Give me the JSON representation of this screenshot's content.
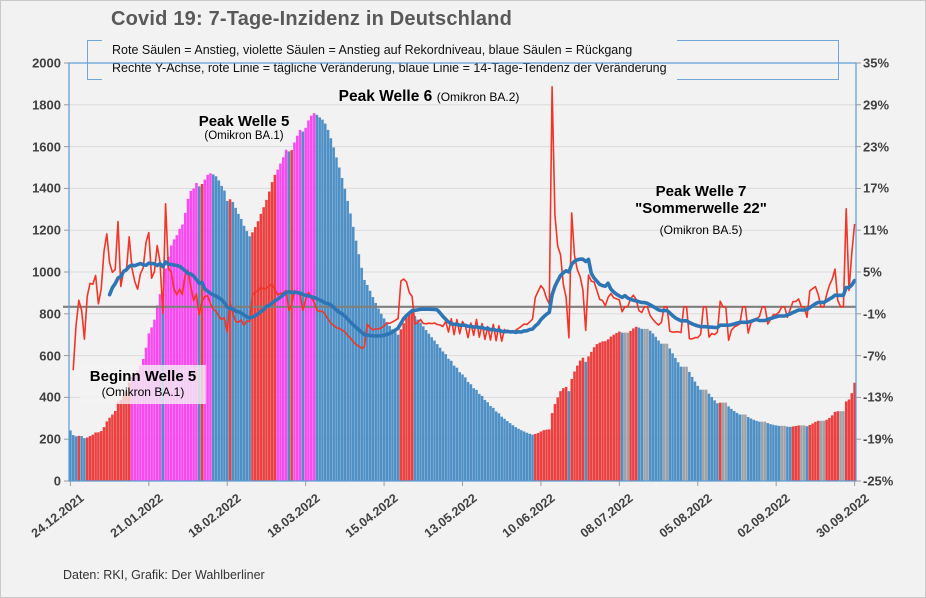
{
  "title": "Covid 19: 7-Tage-Inzidenz in Deutschland",
  "legend": {
    "line1": "Rote Säulen = Anstieg, violette Säulen = Anstieg auf Rekordniveau, blaue Säulen = Rückgang",
    "line2": "Rechte Y-Achse, rote Linie = tägliche Veränderung, blaue Linie = 14-Tage-Tendenz der Veränderung"
  },
  "footer": "Daten: RKI, Grafik: Der Wahlberliner",
  "annotations": {
    "beginn_w5_title": "Beginn Welle 5",
    "beginn_w5_sub": "(Omikron BA.1)",
    "peak_w5_title": "Peak Welle 5",
    "peak_w5_sub": "(Omikron BA.1)",
    "peak_w6_title": "Peak Welle 6",
    "peak_w6_sub": "(Omikron BA.2)",
    "peak_w7_line1": "Peak Welle 7",
    "peak_w7_line2": "\"Sommerwelle 22\"",
    "peak_w7_sub": "(Omikron BA.5)"
  },
  "colors": {
    "bar_rise": "#EA4040",
    "bar_record": "#F74BF0",
    "bar_decline": "#4E90C6",
    "bar_unchanged": "#9EA3A8",
    "line_daily": "#F23527",
    "line_trend": "#2E75B6",
    "zero_line": "#7F7F7F",
    "grid": "#DBDBDB",
    "plot_border": "#5B9BD5",
    "axis_text": "#404040",
    "title_text": "#595959"
  },
  "chart_data": {
    "type": "bar",
    "title": "Covid 19: 7-Tage-Inzidenz in Deutschland",
    "start_date": "24.12.2021",
    "end_date": "30.09.2022",
    "x_tick_labels": [
      "24.12.2021",
      "21.01.2022",
      "18.02.2022",
      "18.03.2022",
      "15.04.2022",
      "13.05.2022",
      "10.06.2022",
      "08.07.2022",
      "05.08.2022",
      "02.09.2022",
      "30.09.2022"
    ],
    "x_tick_day_interval": 28,
    "left_axis": {
      "min": 0,
      "max": 2000,
      "tick_labels": [
        "2000",
        "1800",
        "1600",
        "1400",
        "1200",
        "1000",
        "800",
        "600",
        "400",
        "200",
        "0"
      ]
    },
    "right_axis": {
      "min": -25,
      "max": 35,
      "unit": "%",
      "tick_labels": [
        "35%",
        "29%",
        "23%",
        "17%",
        "11%",
        "5%",
        "-1%",
        "-7%",
        "-13%",
        "-19%",
        "-25%"
      ]
    },
    "reference_line_right_axis_pct": 0,
    "previous_record_incidence": 485,
    "bar_color_rule": "rise=red, rise-to-new-record=violet, decline=blue, unchanged=gray",
    "red_line_def": "daily percent change of the bar values (right axis)",
    "blue_line_def": "trailing 14-day mean of the daily percent change (right axis)",
    "daily_incidence": [
      242,
      220,
      214,
      216,
      215,
      205,
      208,
      215,
      222,
      232,
      233,
      239,
      258,
      285,
      303,
      318,
      335,
      376,
      387,
      407,
      428,
      471,
      497,
      515,
      528,
      553,
      584,
      638,
      706,
      735,
      772,
      840,
      894,
      886,
      1017,
      1073,
      1127,
      1156,
      1176,
      1206,
      1227,
      1283,
      1350,
      1388,
      1400,
      1426,
      1410,
      1421,
      1442,
      1465,
      1472,
      1467,
      1458,
      1438,
      1412,
      1390,
      1340,
      1348,
      1335,
      1307,
      1278,
      1254,
      1221,
      1196,
      1171,
      1190,
      1215,
      1243,
      1278,
      1310,
      1345,
      1385,
      1430,
      1465,
      1490,
      1519,
      1549,
      1585,
      1577,
      1583,
      1620,
      1652,
      1680,
      1672,
      1690,
      1725,
      1748,
      1760,
      1752,
      1740,
      1729,
      1710,
      1680,
      1640,
      1596,
      1548,
      1500,
      1450,
      1398,
      1340,
      1280,
      1216,
      1150,
      1085,
      1020,
      962,
      938,
      910,
      880,
      852,
      825,
      800,
      778,
      760,
      742,
      726,
      712,
      700,
      726,
      755,
      782,
      798,
      810,
      790,
      772,
      758,
      740,
      722,
      705,
      688,
      672,
      655,
      638,
      620,
      607,
      585,
      575,
      552,
      542,
      521,
      510,
      496,
      474,
      463,
      444,
      436,
      417,
      407,
      388,
      377,
      359,
      350,
      333,
      324,
      308,
      298,
      287,
      277,
      267,
      258,
      250,
      243,
      237,
      231,
      226,
      222,
      225,
      230,
      237,
      243,
      246,
      247,
      325,
      368,
      400,
      430,
      444,
      450,
      430,
      488,
      524,
      552,
      576,
      590,
      570,
      596,
      618,
      640,
      655,
      662,
      668,
      669,
      678,
      691,
      700,
      708,
      715,
      710,
      710,
      710,
      718,
      730,
      738,
      734,
      728,
      728,
      728,
      719,
      706,
      690,
      672,
      657,
      657,
      657,
      634,
      611,
      589,
      568,
      547,
      547,
      547,
      522,
      498,
      476,
      455,
      437,
      437,
      437,
      418,
      402,
      386,
      372,
      375,
      375,
      375,
      357,
      345,
      335,
      326,
      318,
      318,
      318,
      306,
      299,
      293,
      288,
      284,
      284,
      284,
      277,
      272,
      269,
      266,
      264,
      264,
      264,
      260,
      259,
      261,
      263,
      266,
      266,
      266,
      262,
      268,
      275,
      283,
      288,
      288,
      288,
      293,
      302,
      314,
      331,
      334,
      334,
      334,
      381,
      390,
      420,
      470
    ]
  }
}
